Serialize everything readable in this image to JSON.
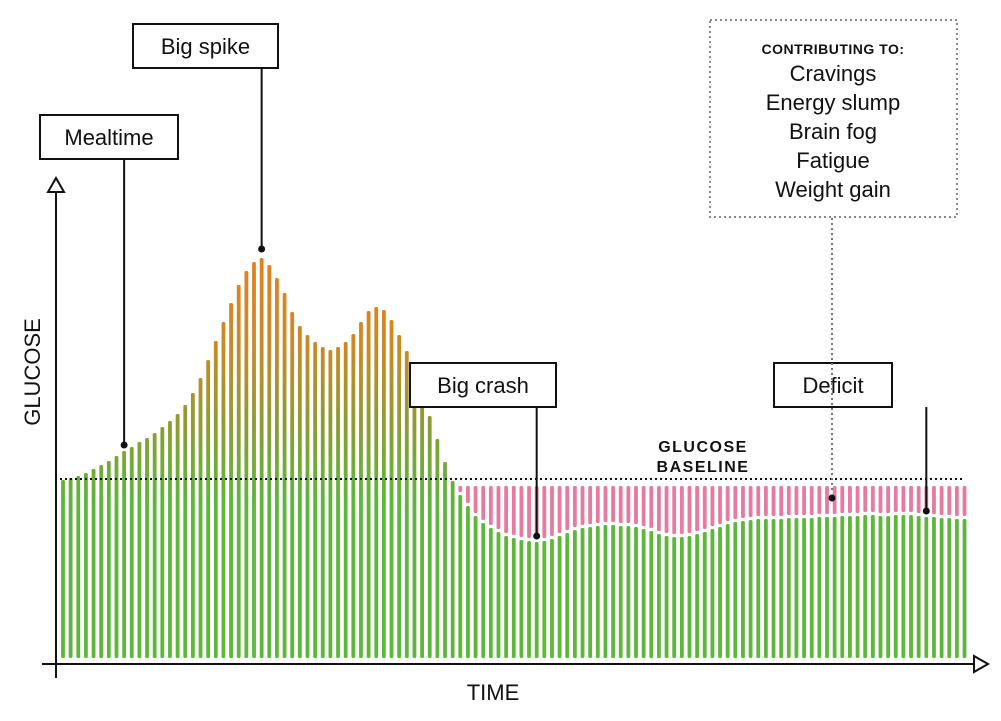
{
  "chart_data": {
    "type": "bar",
    "xlabel": "TIME",
    "ylabel": "GLUCOSE",
    "baseline_label": [
      "GLUCOSE",
      "BASELINE"
    ],
    "baseline": 178,
    "ylim": [
      0,
      490
    ],
    "values": [
      178,
      180,
      182,
      185,
      189,
      193,
      197,
      202,
      207,
      211,
      216,
      220,
      225,
      231,
      237,
      244,
      253,
      265,
      280,
      298,
      317,
      336,
      355,
      373,
      387,
      396,
      400,
      393,
      380,
      365,
      346,
      332,
      323,
      316,
      311,
      308,
      311,
      316,
      324,
      336,
      347,
      351,
      348,
      338,
      323,
      307,
      288,
      266,
      242,
      219,
      196,
      177,
      163,
      152,
      142,
      135,
      130,
      126,
      122,
      120,
      118,
      117,
      116,
      117,
      119,
      122,
      125,
      128,
      130,
      131,
      132,
      133,
      133,
      132,
      132,
      131,
      129,
      127,
      124,
      122,
      121,
      121,
      122,
      124,
      126,
      129,
      131,
      134,
      136,
      137,
      138,
      139,
      139,
      139,
      139,
      140,
      140,
      140,
      140,
      141,
      141,
      141,
      142,
      142,
      142,
      143,
      143,
      142,
      142,
      143,
      143,
      143,
      142,
      141,
      141,
      140,
      140,
      139,
      139
    ],
    "colors": {
      "spike": "#f07d1a",
      "mid": "#8f9b30",
      "base": "#5cb73a",
      "deficit": "#e87a9d"
    },
    "callouts": [
      {
        "label": "Mealtime",
        "bar": 8
      },
      {
        "label": "Big spike",
        "bar": 26
      },
      {
        "label": "Big crash",
        "bar": 62
      },
      {
        "label": "Deficit",
        "bar": 113
      }
    ],
    "contributing": {
      "heading": "CONTRIBUTING TO:",
      "items": [
        "Cravings",
        "Energy slump",
        "Brain fog",
        "Fatigue",
        "Weight gain"
      ]
    }
  }
}
